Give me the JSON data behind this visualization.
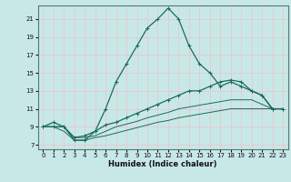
{
  "xlabel": "Humidex (Indice chaleur)",
  "bg_color": "#c8e8e8",
  "grid_color": "#e8c8c8",
  "line_color": "#1a6b5a",
  "xlim": [
    -0.5,
    23.5
  ],
  "ylim": [
    6.5,
    22.5
  ],
  "xticks": [
    0,
    1,
    2,
    3,
    4,
    5,
    6,
    7,
    8,
    9,
    10,
    11,
    12,
    13,
    14,
    15,
    16,
    17,
    18,
    19,
    20,
    21,
    22,
    23
  ],
  "yticks": [
    7,
    9,
    11,
    13,
    15,
    17,
    19,
    21
  ],
  "line1_x": [
    0,
    1,
    2,
    3,
    4,
    5,
    6,
    7,
    8,
    9,
    10,
    11,
    12,
    13,
    14,
    15,
    16,
    17,
    18,
    19,
    20,
    21,
    22,
    23
  ],
  "line1_y": [
    9.0,
    9.0,
    9.0,
    7.5,
    7.5,
    8.5,
    11.0,
    14.0,
    16.0,
    18.0,
    20.0,
    21.0,
    22.2,
    21.0,
    18.0,
    16.0,
    15.0,
    13.5,
    14.0,
    13.5,
    13.0,
    12.5,
    11.0,
    11.0
  ],
  "line2_x": [
    0,
    1,
    2,
    3,
    4,
    5,
    6,
    7,
    8,
    9,
    10,
    11,
    12,
    13,
    14,
    15,
    16,
    17,
    18,
    19,
    20,
    21,
    22,
    23
  ],
  "line2_y": [
    9.0,
    9.5,
    9.0,
    7.8,
    8.0,
    8.5,
    9.2,
    9.5,
    10.0,
    10.5,
    11.0,
    11.5,
    12.0,
    12.5,
    13.0,
    13.0,
    13.5,
    14.0,
    14.2,
    14.0,
    13.0,
    12.5,
    11.0,
    11.0
  ],
  "line3_x": [
    0,
    1,
    2,
    3,
    4,
    5,
    6,
    7,
    8,
    9,
    10,
    11,
    12,
    13,
    14,
    15,
    16,
    17,
    18,
    19,
    20,
    21,
    22,
    23
  ],
  "line3_y": [
    9.0,
    9.0,
    9.0,
    7.8,
    7.8,
    8.0,
    8.5,
    9.0,
    9.3,
    9.6,
    10.0,
    10.3,
    10.6,
    11.0,
    11.2,
    11.4,
    11.6,
    11.8,
    12.0,
    12.0,
    12.0,
    11.5,
    11.0,
    11.0
  ],
  "line4_x": [
    0,
    1,
    2,
    3,
    4,
    5,
    6,
    7,
    8,
    9,
    10,
    11,
    12,
    13,
    14,
    15,
    16,
    17,
    18,
    19,
    20,
    21,
    22,
    23
  ],
  "line4_y": [
    9.0,
    9.0,
    8.5,
    7.5,
    7.5,
    7.8,
    8.0,
    8.3,
    8.6,
    8.9,
    9.2,
    9.5,
    9.7,
    10.0,
    10.2,
    10.4,
    10.6,
    10.8,
    11.0,
    11.0,
    11.0,
    11.0,
    11.0,
    11.0
  ]
}
